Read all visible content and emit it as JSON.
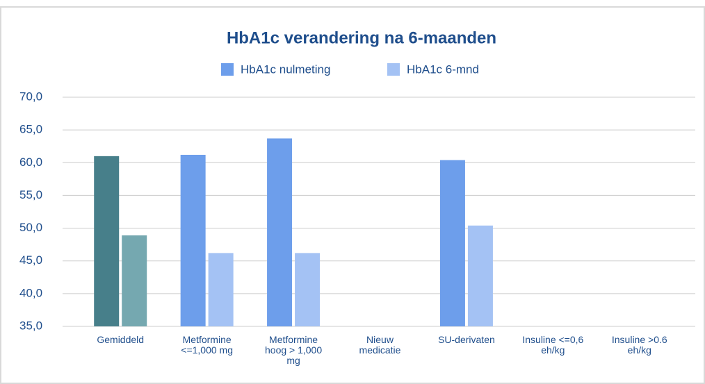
{
  "chart_data": {
    "type": "bar",
    "title": "HbA1c verandering na 6-maanden",
    "categories": [
      "Gemiddeld",
      "Metformine\n<=1,000 mg",
      "Metformine\nhoog > 1,000\nmg",
      "Nieuw\nmedicatie",
      "SU-derivaten",
      "Insuline <=0,6\neh/kg",
      "Insuline >0.6\neh/kg"
    ],
    "series": [
      {
        "name": "HbA1c nulmeting",
        "color": "#6d9eeb",
        "colors": [
          "#477f8a",
          "#6d9eeb",
          "#6d9eeb",
          "#6d9eeb",
          "#6d9eeb",
          "#6d9eeb",
          "#6d9eeb"
        ],
        "values": [
          61.0,
          61.2,
          63.7,
          null,
          60.4,
          null,
          null
        ]
      },
      {
        "name": "HbA1c 6-mnd",
        "color": "#a4c2f4",
        "colors": [
          "#75a8b0",
          "#a4c2f4",
          "#a4c2f4",
          "#a4c2f4",
          "#a4c2f4",
          "#a4c2f4",
          "#a4c2f4"
        ],
        "values": [
          48.9,
          46.2,
          46.2,
          null,
          50.4,
          null,
          null
        ]
      }
    ],
    "ylim": [
      35,
      70
    ],
    "yticks": [
      {
        "value": 35,
        "label": "35,0"
      },
      {
        "value": 40,
        "label": "40,0"
      },
      {
        "value": 45,
        "label": "45,0"
      },
      {
        "value": 50,
        "label": "50,0"
      },
      {
        "value": 55,
        "label": "55,0"
      },
      {
        "value": 60,
        "label": "60,0"
      },
      {
        "value": 65,
        "label": "65,0"
      },
      {
        "value": 70,
        "label": "70,0"
      }
    ],
    "grid": true,
    "legend": "top"
  }
}
